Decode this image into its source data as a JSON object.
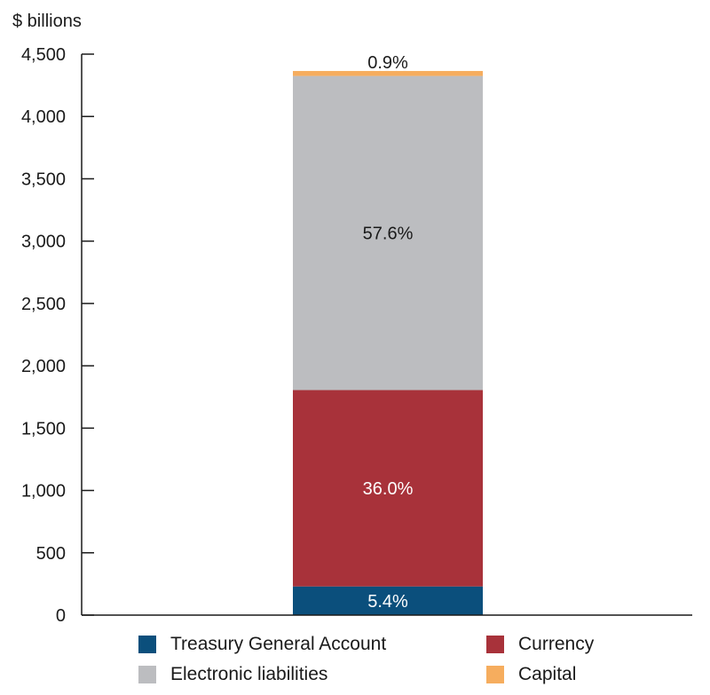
{
  "chart_data": {
    "type": "bar",
    "stacked": true,
    "ylabel": "$ billions",
    "ylim": [
      0,
      4500
    ],
    "yticks": [
      0,
      500,
      1000,
      1500,
      2000,
      2500,
      3000,
      3500,
      4000,
      4500
    ],
    "ytick_labels": [
      "0",
      "500",
      "1,000",
      "1,500",
      "2,000",
      "2,500",
      "3,000",
      "3,500",
      "4,000",
      "4,500"
    ],
    "grid": false,
    "legend_position": "bottom",
    "categories": [
      ""
    ],
    "series": [
      {
        "name": "Treasury General Account",
        "values": [
          230
        ],
        "label": "5.4%",
        "color": "#0b4f7c",
        "label_color": "#ffffff"
      },
      {
        "name": "Currency",
        "values": [
          1575
        ],
        "label": "36.0%",
        "color": "#a8323a",
        "label_color": "#ffffff"
      },
      {
        "name": "Electronic liabilities",
        "values": [
          2520
        ],
        "label": "57.6%",
        "color": "#bcbdc0",
        "label_color": "#1a1a1a"
      },
      {
        "name": "Capital",
        "values": [
          40
        ],
        "label": "0.9%",
        "color": "#f6ad5e",
        "label_color": "#1a1a1a"
      }
    ],
    "legend": [
      {
        "name": "Treasury General Account",
        "color": "#0b4f7c"
      },
      {
        "name": "Currency",
        "color": "#a8323a"
      },
      {
        "name": "Electronic liabilities",
        "color": "#bcbdc0"
      },
      {
        "name": "Capital",
        "color": "#f6ad5e"
      }
    ]
  }
}
